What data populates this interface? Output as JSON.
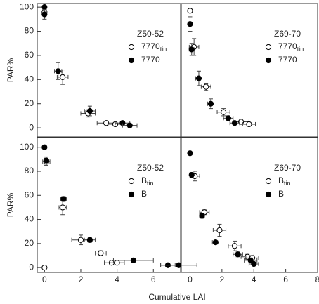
{
  "chart_data": [
    {
      "type": "scatter",
      "annotation": "Z50-52",
      "ylabel": "PAR%",
      "xlim": [
        -0.4,
        7.5
      ],
      "ylim": [
        -7.5,
        103
      ],
      "yticks": [
        0,
        20,
        40,
        60,
        80,
        100
      ],
      "series": [
        {
          "name": "7770",
          "subscript": "tin",
          "color": "#ffffff",
          "x": [
            0,
            1.0,
            2.4,
            3.4,
            3.9
          ],
          "values": [
            96,
            42,
            12,
            4,
            3
          ],
          "xerr": [
            0.1,
            0.3,
            0.4,
            0.5,
            0.4
          ],
          "yerr": [
            2,
            6,
            3,
            1,
            1
          ]
        },
        {
          "name": "7770",
          "color": "#000000",
          "x": [
            0,
            0,
            0.75,
            2.5,
            4.3,
            4.7
          ],
          "values": [
            100,
            94,
            47,
            14,
            4,
            2
          ],
          "xerr": [
            0,
            0.1,
            0.2,
            0.3,
            0.4,
            0.4
          ],
          "yerr": [
            0,
            4,
            7,
            4,
            1,
            1
          ]
        }
      ]
    },
    {
      "type": "scatter",
      "annotation": "Z69-70",
      "xlim": [
        -0.55,
        8
      ],
      "ylim": [
        -7.5,
        103
      ],
      "series": [
        {
          "name": "7770",
          "subscript": "tin",
          "color": "#ffffff",
          "x": [
            0,
            0.25,
            1.0,
            2.1,
            3.2,
            3.7
          ],
          "values": [
            97,
            67,
            34,
            13,
            5,
            3
          ],
          "xerr": [
            0.1,
            0.3,
            0.3,
            0.4,
            0.5,
            0.4
          ],
          "yerr": [
            1,
            7,
            3,
            3,
            1,
            1
          ]
        },
        {
          "name": "7770",
          "color": "#000000",
          "x": [
            0,
            0.1,
            0.55,
            1.3,
            2.4,
            2.8
          ],
          "values": [
            86,
            65,
            41,
            20,
            8,
            4
          ],
          "xerr": [
            0,
            0.15,
            0.2,
            0.2,
            0.3,
            0.3
          ],
          "yerr": [
            6,
            5,
            6,
            4,
            2,
            1
          ]
        }
      ]
    },
    {
      "type": "scatter",
      "annotation": "Z50-52",
      "ylabel": "PAR%",
      "xlabel": "Cumulative LAI",
      "xlim": [
        -0.4,
        7.5
      ],
      "ylim": [
        -4,
        108
      ],
      "xticks": [
        0,
        2,
        4,
        6
      ],
      "yticks": [
        0,
        20,
        40,
        60,
        80,
        100
      ],
      "series": [
        {
          "name": "B",
          "subscript": "tin",
          "color": "#ffffff",
          "x": [
            0,
            0.1,
            1.0,
            2.0,
            3.1,
            3.7,
            4.0
          ],
          "values": [
            0,
            88,
            50,
            23,
            12,
            4,
            4
          ],
          "xerr": [
            0,
            0.2,
            0.2,
            0.5,
            0.3,
            0.4,
            0.4
          ],
          "yerr": [
            0,
            3,
            6,
            4,
            2,
            1,
            1
          ]
        },
        {
          "name": "B",
          "color": "#000000",
          "x": [
            0,
            0.1,
            1.05,
            2.5,
            4.9,
            6.8,
            7.4
          ],
          "values": [
            100,
            89,
            57,
            23,
            6,
            2,
            2
          ],
          "xerr": [
            0,
            0.1,
            0.15,
            0.3,
            1.1,
            0.4,
            1.0
          ],
          "yerr": [
            0,
            3,
            2,
            2,
            1,
            1,
            1
          ]
        }
      ]
    },
    {
      "type": "scatter",
      "annotation": "Z69-70",
      "xlim": [
        -0.55,
        8
      ],
      "ylim": [
        -4,
        108
      ],
      "xticks": [
        0,
        2,
        4,
        6,
        8
      ],
      "series": [
        {
          "name": "B",
          "subscript": "tin",
          "color": "#ffffff",
          "x": [
            0.3,
            0.9,
            1.85,
            2.8,
            3.6,
            3.9
          ],
          "values": [
            76,
            46,
            31,
            18,
            9,
            8
          ],
          "xerr": [
            0.3,
            0.3,
            0.4,
            0.4,
            0.4,
            0.4
          ],
          "yerr": [
            4,
            2,
            5,
            4,
            2,
            2
          ]
        },
        {
          "name": "B",
          "color": "#000000",
          "x": [
            0,
            0.1,
            0.75,
            1.6,
            3.0,
            3.8,
            4.0
          ],
          "values": [
            95,
            77,
            43,
            21,
            11,
            6,
            3
          ],
          "xerr": [
            0,
            0.1,
            0.15,
            0.2,
            0.3,
            0.4,
            0.3
          ],
          "yerr": [
            1,
            2,
            2,
            1,
            2,
            2,
            1
          ]
        }
      ]
    }
  ]
}
